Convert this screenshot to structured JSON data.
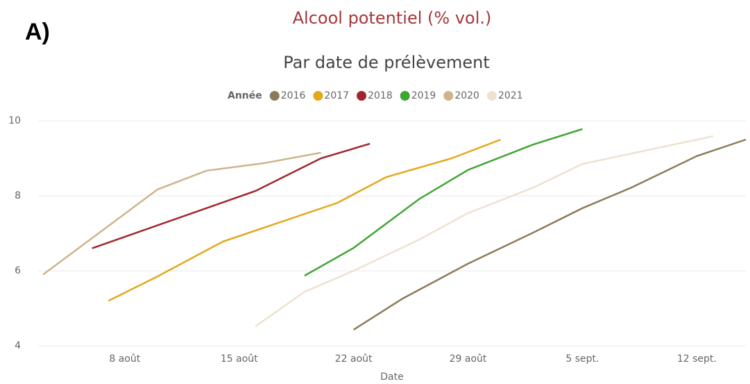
{
  "panel_label": "A)",
  "chart_data": {
    "type": "line",
    "title": "Alcool potentiel (% vol.)",
    "subtitle": "Par date de prélèvement",
    "legend_title": "Année",
    "xlabel": "Date",
    "grid": true,
    "xlim": [
      2.7,
      46
    ],
    "xticks": [
      {
        "value": 8,
        "label": "8 août"
      },
      {
        "value": 15,
        "label": "15 août"
      },
      {
        "value": 22,
        "label": "22 août"
      },
      {
        "value": 29,
        "label": "29 août"
      },
      {
        "value": 36,
        "label": "5 sept."
      },
      {
        "value": 43,
        "label": "12 sept."
      }
    ],
    "ylim": [
      4,
      10
    ],
    "yticks": [
      4,
      6,
      8,
      10
    ],
    "series": [
      {
        "name": "2016",
        "color": "#8c7b58",
        "x": [
          22,
          25,
          29,
          33,
          36,
          39,
          43,
          46
        ],
        "values": [
          4.43,
          5.26,
          6.19,
          7.02,
          7.67,
          8.22,
          9.06,
          9.5
        ]
      },
      {
        "name": "2017",
        "color": "#e4a71a",
        "x": [
          7,
          10,
          14,
          21,
          24,
          28,
          31
        ],
        "values": [
          5.2,
          5.85,
          6.78,
          7.81,
          8.5,
          9.0,
          9.5
        ]
      },
      {
        "name": "2018",
        "color": "#a3242d",
        "x": [
          6,
          16,
          20,
          23
        ],
        "values": [
          6.6,
          8.13,
          9.0,
          9.39
        ]
      },
      {
        "name": "2019",
        "color": "#3fa535",
        "x": [
          19,
          22,
          26,
          29,
          33,
          36
        ],
        "values": [
          5.87,
          6.61,
          7.91,
          8.69,
          9.37,
          9.78
        ]
      },
      {
        "name": "2020",
        "color": "#cdb48a",
        "x": [
          3,
          10,
          13,
          16.5,
          20
        ],
        "values": [
          5.9,
          8.17,
          8.67,
          8.87,
          9.15
        ]
      },
      {
        "name": "2021",
        "color": "#ede2cf",
        "x": [
          16,
          19,
          22,
          26,
          29,
          33,
          36,
          44
        ],
        "values": [
          4.52,
          5.44,
          6.0,
          6.83,
          7.54,
          8.22,
          8.85,
          9.59
        ]
      }
    ]
  }
}
